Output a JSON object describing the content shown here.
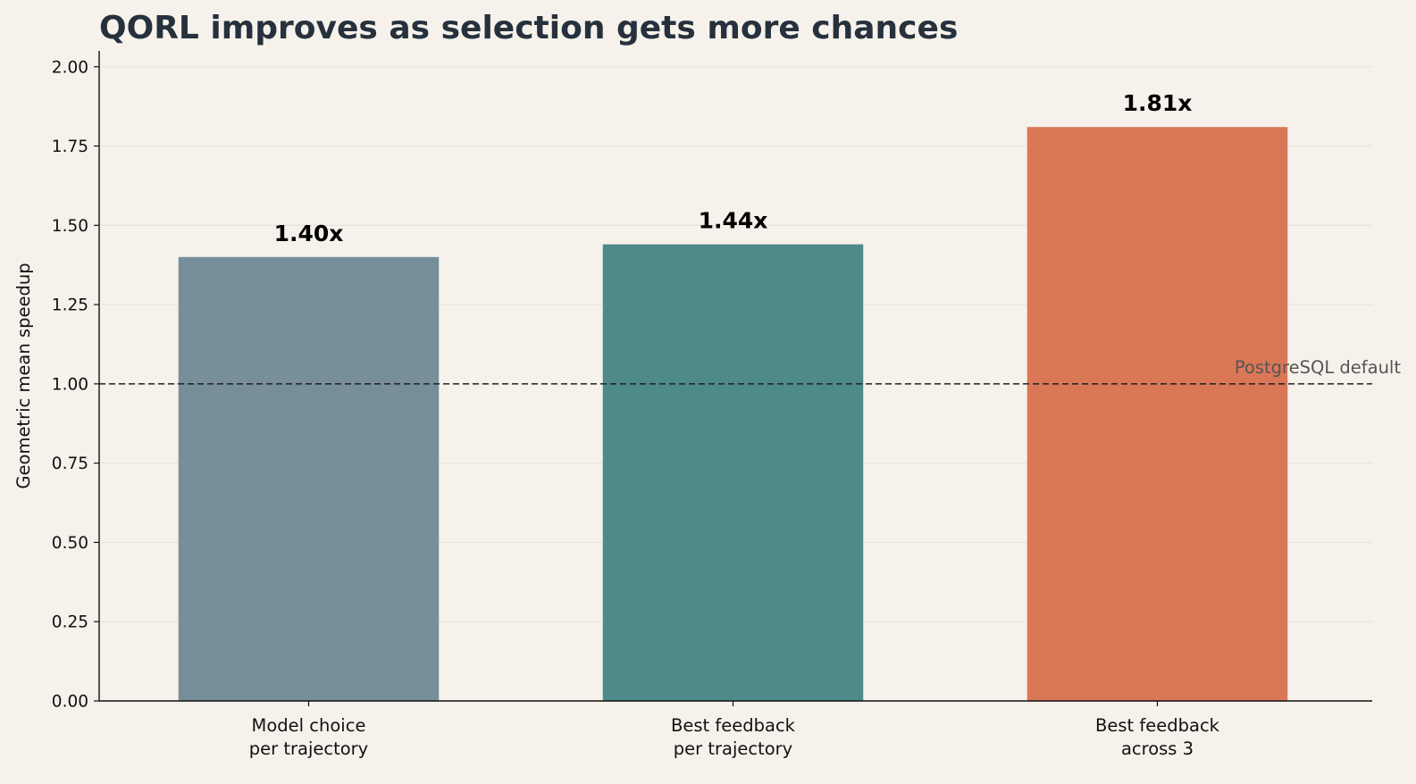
{
  "chart_data": {
    "type": "bar",
    "title": "QORL improves as selection gets more chances",
    "xlabel": "",
    "ylabel": "Geometric mean speedup",
    "ylim": [
      0,
      2.05
    ],
    "yticks": [
      0.0,
      0.25,
      0.5,
      0.75,
      1.0,
      1.25,
      1.5,
      1.75,
      2.0
    ],
    "ytick_labels": [
      "0.00",
      "0.25",
      "0.50",
      "0.75",
      "1.00",
      "1.25",
      "1.50",
      "1.75",
      "2.00"
    ],
    "grid": "horizontal",
    "categories": [
      [
        "Model choice",
        "per trajectory"
      ],
      [
        "Best feedback",
        "per trajectory"
      ],
      [
        "Best feedback",
        "across 3"
      ]
    ],
    "values": [
      1.4,
      1.44,
      1.81
    ],
    "value_labels": [
      "1.40x",
      "1.44x",
      "1.81x"
    ],
    "colors": [
      "#778f9a",
      "#4e8a89",
      "#da7757"
    ],
    "reference_line": {
      "value": 1.0,
      "label": "PostgreSQL default",
      "style": "dashed",
      "color": "#222222",
      "label_color": "#555555"
    },
    "background": "#f6f2eb",
    "grid_color": "#e9e4dc",
    "title_color": "#26313d"
  }
}
